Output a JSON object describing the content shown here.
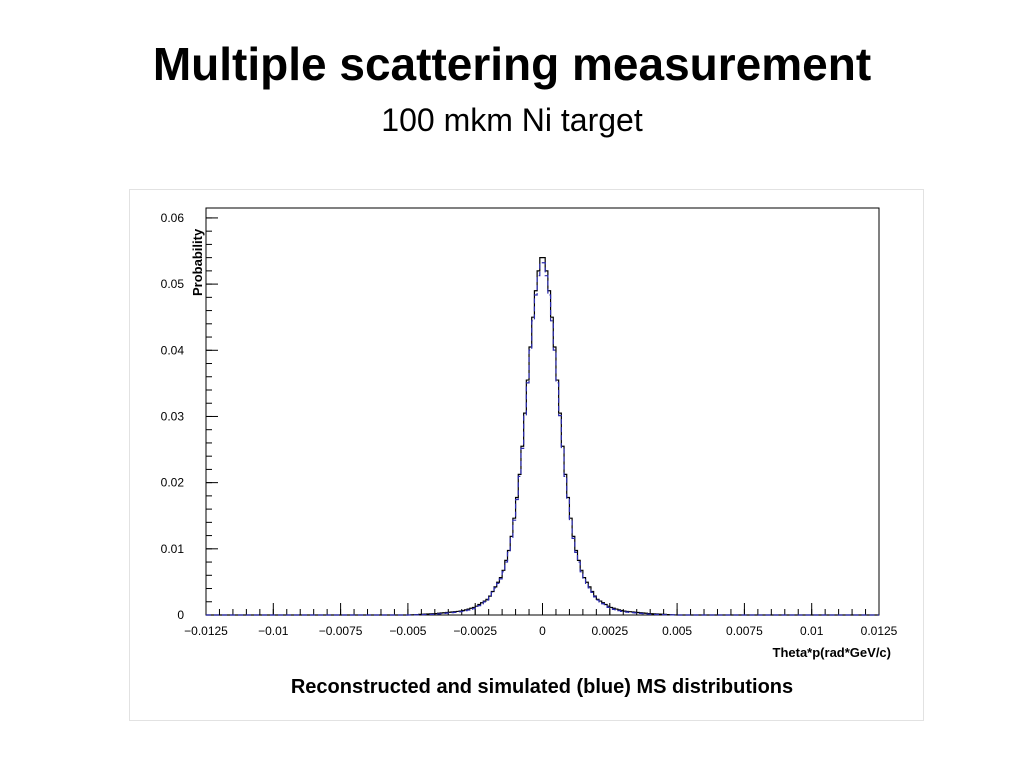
{
  "slide": {
    "title": "Multiple scattering measurement",
    "subtitle": "100 mkm Ni target"
  },
  "chart_data": {
    "type": "line",
    "title": "Reconstructed and simulated (blue) MS distributions",
    "xlabel": "Theta*p(rad*GeV/c)",
    "ylabel": "Probability",
    "xlim": [
      -0.0125,
      0.0125
    ],
    "ylim": [
      0,
      0.0615
    ],
    "x_ticks": [
      -0.0125,
      -0.01,
      -0.0075,
      -0.005,
      -0.0025,
      0,
      0.0025,
      0.005,
      0.0075,
      0.01,
      0.0125
    ],
    "x_tick_labels": [
      "−0.0125",
      "−0.01",
      "−0.0075",
      "−0.005",
      "−0.0025",
      "0",
      "0.0025",
      "0.005",
      "0.0075",
      "0.01",
      "0.0125"
    ],
    "y_ticks": [
      0,
      0.01,
      0.02,
      0.03,
      0.04,
      0.05,
      0.06
    ],
    "y_tick_labels": [
      "0",
      "0.01",
      "0.02",
      "0.03",
      "0.04",
      "0.05",
      "0.06"
    ],
    "grid": false,
    "series": [
      {
        "name": "Reconstructed",
        "color": "#000000",
        "style": "step",
        "x": [
          -0.0125,
          -0.005,
          -0.004,
          -0.0035,
          -0.003,
          -0.0025,
          -0.002,
          -0.0015,
          -0.0012,
          -0.001,
          -0.0008,
          -0.0006,
          -0.0004,
          -0.0002,
          0,
          0.0002,
          0.0004,
          0.0006,
          0.0008,
          0.001,
          0.0012,
          0.0015,
          0.002,
          0.0025,
          0.003,
          0.0035,
          0.004,
          0.005,
          0.0125
        ],
        "y": [
          0,
          0,
          0.0002,
          0.0004,
          0.0006,
          0.0012,
          0.0025,
          0.006,
          0.0105,
          0.016,
          0.023,
          0.033,
          0.043,
          0.051,
          0.055,
          0.051,
          0.043,
          0.033,
          0.023,
          0.016,
          0.0105,
          0.006,
          0.0025,
          0.0012,
          0.0006,
          0.0004,
          0.0002,
          0,
          0
        ]
      },
      {
        "name": "Simulated",
        "color": "#2b2bb0",
        "style": "dashed",
        "x": [
          -0.0125,
          -0.005,
          -0.004,
          -0.0035,
          -0.003,
          -0.0025,
          -0.002,
          -0.0015,
          -0.0012,
          -0.001,
          -0.0008,
          -0.0006,
          -0.0004,
          -0.0002,
          0,
          0.0002,
          0.0004,
          0.0006,
          0.0008,
          0.001,
          0.0012,
          0.0015,
          0.002,
          0.0025,
          0.003,
          0.0035,
          0.004,
          0.005,
          0.0125
        ],
        "y": [
          0,
          0,
          0.0001,
          0.0003,
          0.0005,
          0.001,
          0.0024,
          0.0058,
          0.0102,
          0.0157,
          0.0227,
          0.0326,
          0.0425,
          0.0503,
          0.0542,
          0.0503,
          0.0425,
          0.0326,
          0.0227,
          0.0157,
          0.0102,
          0.0058,
          0.0024,
          0.001,
          0.0005,
          0.0003,
          0.0001,
          0,
          0
        ]
      }
    ]
  }
}
